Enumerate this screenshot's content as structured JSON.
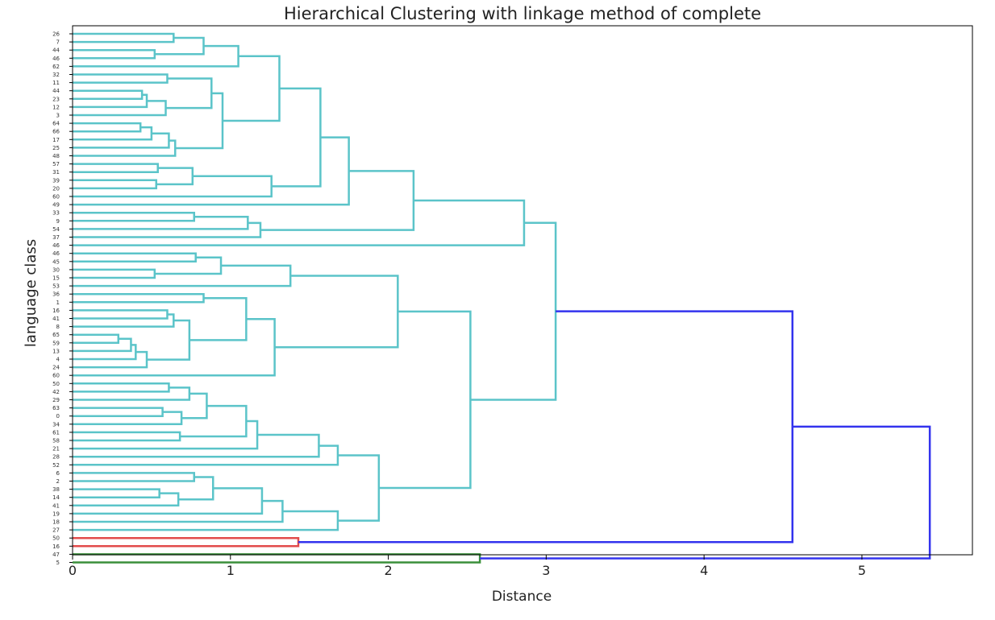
{
  "chart_data": {
    "type": "dendrogram",
    "title": "Hierarchical Clustering with linkage method of complete",
    "xlabel": "Distance",
    "ylabel": "language class",
    "xlim": [
      0,
      5.7
    ],
    "xticks": [
      0,
      1,
      2,
      3,
      4,
      5
    ],
    "grid": false,
    "leaves": [
      "26",
      "7",
      "44",
      "46",
      "62",
      "32",
      "11",
      "44",
      "23",
      "12",
      "3",
      "64",
      "66",
      "17",
      "25",
      "48",
      "57",
      "31",
      "39",
      "20",
      "60",
      "49",
      "33",
      "9",
      "54",
      "37",
      "46",
      "46",
      "45",
      "30",
      "15",
      "53",
      "36",
      "1",
      "16",
      "41",
      "8",
      "65",
      "59",
      "13",
      "4",
      "24",
      "60",
      "50",
      "42",
      "29",
      "63",
      "0",
      "34",
      "61",
      "58",
      "21",
      "28",
      "52",
      "6",
      "2",
      "38",
      "14",
      "41",
      "19",
      "18",
      "27",
      "50",
      "16",
      "47",
      "5"
    ],
    "links": [
      {
        "l": 0,
        "r": 1,
        "d": 0.64,
        "color": "#5BC4C9"
      },
      {
        "l": 2,
        "r": 3,
        "d": 0.52,
        "color": "#5BC4C9"
      },
      {
        "l": "c0",
        "r": "c1",
        "d": 0.83,
        "color": "#5BC4C9"
      },
      {
        "l": "c2",
        "r": 4,
        "d": 1.05,
        "color": "#5BC4C9"
      },
      {
        "l": 7,
        "r": 8,
        "d": 0.44,
        "color": "#5BC4C9"
      },
      {
        "l": "c4",
        "r": 9,
        "d": 0.47,
        "color": "#5BC4C9"
      },
      {
        "l": "c5",
        "r": 10,
        "d": 0.59,
        "color": "#5BC4C9"
      },
      {
        "l": 5,
        "r": 6,
        "d": 0.6,
        "color": "#5BC4C9"
      },
      {
        "l": "c7",
        "r": "c6",
        "d": 0.88,
        "color": "#5BC4C9"
      },
      {
        "l": 11,
        "r": 12,
        "d": 0.43,
        "color": "#5BC4C9"
      },
      {
        "l": "c9",
        "r": 13,
        "d": 0.5,
        "color": "#5BC4C9"
      },
      {
        "l": "c10",
        "r": 14,
        "d": 0.61,
        "color": "#5BC4C9"
      },
      {
        "l": "c11",
        "r": 15,
        "d": 0.65,
        "color": "#5BC4C9"
      },
      {
        "l": "c8",
        "r": "c12",
        "d": 0.95,
        "color": "#5BC4C9"
      },
      {
        "l": "c3",
        "r": "c13",
        "d": 1.31,
        "color": "#5BC4C9"
      },
      {
        "l": 16,
        "r": 17,
        "d": 0.54,
        "color": "#5BC4C9"
      },
      {
        "l": 18,
        "r": 19,
        "d": 0.53,
        "color": "#5BC4C9"
      },
      {
        "l": "c15",
        "r": "c16",
        "d": 0.76,
        "color": "#5BC4C9"
      },
      {
        "l": "c17",
        "r": 20,
        "d": 1.26,
        "color": "#5BC4C9"
      },
      {
        "l": "c14",
        "r": "c18",
        "d": 1.57,
        "color": "#5BC4C9"
      },
      {
        "l": "c19",
        "r": 21,
        "d": 1.75,
        "color": "#5BC4C9"
      },
      {
        "l": 22,
        "r": 23,
        "d": 0.77,
        "color": "#5BC4C9"
      },
      {
        "l": "c21",
        "r": 24,
        "d": 1.11,
        "color": "#5BC4C9"
      },
      {
        "l": "c22",
        "r": 25,
        "d": 1.19,
        "color": "#5BC4C9"
      },
      {
        "l": "c20",
        "r": "c23",
        "d": 2.16,
        "color": "#5BC4C9"
      },
      {
        "l": "c24",
        "r": 26,
        "d": 2.86,
        "color": "#5BC4C9"
      },
      {
        "l": 27,
        "r": 28,
        "d": 0.78,
        "color": "#5BC4C9"
      },
      {
        "l": 29,
        "r": 30,
        "d": 0.52,
        "color": "#5BC4C9"
      },
      {
        "l": "c26",
        "r": "c27",
        "d": 0.94,
        "color": "#5BC4C9"
      },
      {
        "l": "c28",
        "r": 31,
        "d": 1.38,
        "color": "#5BC4C9"
      },
      {
        "l": 34,
        "r": 35,
        "d": 0.6,
        "color": "#5BC4C9"
      },
      {
        "l": "c30",
        "r": 36,
        "d": 0.64,
        "color": "#5BC4C9"
      },
      {
        "l": 37,
        "r": 38,
        "d": 0.29,
        "color": "#5BC4C9"
      },
      {
        "l": "c32",
        "r": 39,
        "d": 0.37,
        "color": "#5BC4C9"
      },
      {
        "l": "c33",
        "r": 40,
        "d": 0.4,
        "color": "#5BC4C9"
      },
      {
        "l": "c34",
        "r": 41,
        "d": 0.47,
        "color": "#5BC4C9"
      },
      {
        "l": "c31",
        "r": "c35",
        "d": 0.74,
        "color": "#5BC4C9"
      },
      {
        "l": 32,
        "r": 33,
        "d": 0.83,
        "color": "#5BC4C9"
      },
      {
        "l": "c37",
        "r": "c36",
        "d": 1.1,
        "color": "#5BC4C9"
      },
      {
        "l": "c38",
        "r": 42,
        "d": 1.28,
        "color": "#5BC4C9"
      },
      {
        "l": "c29",
        "r": "c39",
        "d": 2.06,
        "color": "#5BC4C9"
      },
      {
        "l": 43,
        "r": 44,
        "d": 0.61,
        "color": "#5BC4C9"
      },
      {
        "l": "c41",
        "r": 45,
        "d": 0.74,
        "color": "#5BC4C9"
      },
      {
        "l": 46,
        "r": 47,
        "d": 0.57,
        "color": "#5BC4C9"
      },
      {
        "l": "c43",
        "r": 48,
        "d": 0.69,
        "color": "#5BC4C9"
      },
      {
        "l": "c42",
        "r": "c44",
        "d": 0.85,
        "color": "#5BC4C9"
      },
      {
        "l": 49,
        "r": 50,
        "d": 0.68,
        "color": "#5BC4C9"
      },
      {
        "l": "c45",
        "r": "c46",
        "d": 1.1,
        "color": "#5BC4C9"
      },
      {
        "l": "c47",
        "r": 51,
        "d": 1.17,
        "color": "#5BC4C9"
      },
      {
        "l": "c48",
        "r": 52,
        "d": 1.56,
        "color": "#5BC4C9"
      },
      {
        "l": "c49",
        "r": 53,
        "d": 1.68,
        "color": "#5BC4C9"
      },
      {
        "l": 54,
        "r": 55,
        "d": 0.77,
        "color": "#5BC4C9"
      },
      {
        "l": 56,
        "r": 57,
        "d": 0.55,
        "color": "#5BC4C9"
      },
      {
        "l": "c52",
        "r": 58,
        "d": 0.67,
        "color": "#5BC4C9"
      },
      {
        "l": "c51",
        "r": "c53",
        "d": 0.89,
        "color": "#5BC4C9"
      },
      {
        "l": "c54",
        "r": 59,
        "d": 1.2,
        "color": "#5BC4C9"
      },
      {
        "l": "c55",
        "r": 60,
        "d": 1.33,
        "color": "#5BC4C9"
      },
      {
        "l": "c56",
        "r": 61,
        "d": 1.68,
        "color": "#5BC4C9"
      },
      {
        "l": "c50",
        "r": "c57",
        "d": 1.94,
        "color": "#5BC4C9"
      },
      {
        "l": "c40",
        "r": "c58",
        "d": 2.52,
        "color": "#5BC4C9"
      },
      {
        "l": "c25",
        "r": "c59",
        "d": 3.06,
        "color": "#5BC4C9"
      },
      {
        "l": 62,
        "r": 63,
        "d": 1.43,
        "color": "#E24B4B"
      },
      {
        "l": "c60",
        "r": "c61",
        "d": 4.56,
        "color": "#3333EE"
      },
      {
        "l": 64,
        "r": 65,
        "d": 2.58,
        "color": "#3A8F3A"
      },
      {
        "l": "c62",
        "r": "c63",
        "d": 5.43,
        "color": "#3333EE"
      }
    ]
  }
}
